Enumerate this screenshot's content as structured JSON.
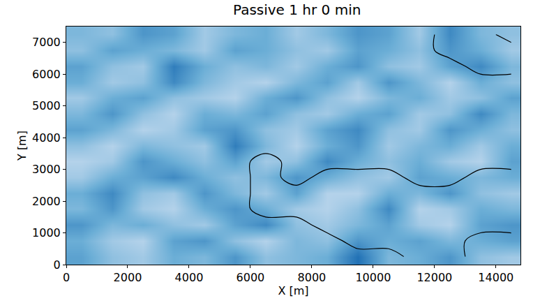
{
  "chart_data": {
    "type": "heatmap",
    "title": "Passive 1 hr 0 min",
    "x_label": "X [m]",
    "y_label": "Y [m]",
    "xlim": [
      0,
      14800
    ],
    "ylim": [
      0,
      7500
    ],
    "xticks": [
      0,
      2000,
      4000,
      6000,
      8000,
      10000,
      12000,
      14000
    ],
    "yticks": [
      0,
      1000,
      2000,
      3000,
      4000,
      5000,
      6000,
      7000
    ],
    "zlim": [
      0,
      1
    ],
    "x": [
      500,
      1500,
      2500,
      3500,
      4500,
      5500,
      6500,
      7500,
      8500,
      9500,
      10500,
      11500,
      12500,
      13500,
      14500
    ],
    "y": [
      250,
      750,
      1250,
      1750,
      2250,
      2750,
      3250,
      3750,
      4250,
      4750,
      5250,
      5750,
      6250,
      6750,
      7250
    ],
    "cells": [
      [
        0.55,
        0.4,
        0.35,
        0.5,
        0.45,
        0.6,
        0.4,
        0.45,
        0.5,
        0.75,
        0.45,
        0.5,
        0.6,
        0.4,
        0.35
      ],
      [
        0.5,
        0.35,
        0.3,
        0.55,
        0.6,
        0.4,
        0.3,
        0.45,
        0.4,
        0.6,
        0.5,
        0.55,
        0.45,
        0.5,
        0.55
      ],
      [
        0.6,
        0.45,
        0.5,
        0.4,
        0.35,
        0.55,
        0.65,
        0.4,
        0.35,
        0.45,
        0.55,
        0.35,
        0.3,
        0.55,
        0.6
      ],
      [
        0.45,
        0.6,
        0.35,
        0.3,
        0.5,
        0.6,
        0.5,
        0.35,
        0.3,
        0.4,
        0.65,
        0.3,
        0.35,
        0.5,
        0.45
      ],
      [
        0.5,
        0.65,
        0.4,
        0.35,
        0.6,
        0.45,
        0.35,
        0.55,
        0.3,
        0.3,
        0.5,
        0.45,
        0.6,
        0.4,
        0.35
      ],
      [
        0.35,
        0.5,
        0.55,
        0.65,
        0.5,
        0.4,
        0.45,
        0.6,
        0.5,
        0.4,
        0.35,
        0.55,
        0.5,
        0.45,
        0.5
      ],
      [
        0.3,
        0.35,
        0.6,
        0.5,
        0.4,
        0.55,
        0.35,
        0.4,
        0.65,
        0.5,
        0.4,
        0.5,
        0.35,
        0.3,
        0.55
      ],
      [
        0.4,
        0.3,
        0.45,
        0.4,
        0.35,
        0.7,
        0.45,
        0.3,
        0.5,
        0.6,
        0.35,
        0.45,
        0.5,
        0.35,
        0.5
      ],
      [
        0.55,
        0.45,
        0.3,
        0.35,
        0.55,
        0.6,
        0.4,
        0.35,
        0.55,
        0.65,
        0.4,
        0.35,
        0.6,
        0.5,
        0.4
      ],
      [
        0.45,
        0.6,
        0.4,
        0.3,
        0.5,
        0.45,
        0.55,
        0.4,
        0.35,
        0.5,
        0.55,
        0.35,
        0.4,
        0.65,
        0.45
      ],
      [
        0.35,
        0.5,
        0.55,
        0.4,
        0.35,
        0.3,
        0.5,
        0.6,
        0.4,
        0.3,
        0.45,
        0.5,
        0.35,
        0.4,
        0.55
      ],
      [
        0.5,
        0.35,
        0.4,
        0.65,
        0.45,
        0.35,
        0.3,
        0.45,
        0.55,
        0.35,
        0.6,
        0.45,
        0.3,
        0.5,
        0.4
      ],
      [
        0.55,
        0.4,
        0.35,
        0.7,
        0.5,
        0.4,
        0.45,
        0.35,
        0.5,
        0.6,
        0.4,
        0.35,
        0.55,
        0.65,
        0.45
      ],
      [
        0.4,
        0.55,
        0.5,
        0.45,
        0.35,
        0.55,
        0.5,
        0.4,
        0.35,
        0.55,
        0.5,
        0.4,
        0.6,
        0.5,
        0.35
      ],
      [
        0.45,
        0.4,
        0.6,
        0.55,
        0.35,
        0.45,
        0.5,
        0.35,
        0.45,
        0.6,
        0.55,
        0.35,
        0.65,
        0.45,
        0.4
      ]
    ],
    "contour_cells": [
      [
        0,
        0,
        0,
        0,
        0,
        0,
        0,
        0,
        0,
        0,
        0,
        1,
        1,
        0,
        0
      ],
      [
        0,
        0,
        0,
        0,
        0,
        0,
        0,
        0,
        0,
        1,
        1,
        1,
        1,
        0,
        0
      ],
      [
        0,
        0,
        0,
        0,
        0,
        0,
        0,
        0,
        1,
        1,
        1,
        1,
        1,
        1,
        1
      ],
      [
        0,
        0,
        0,
        0,
        0,
        0,
        1,
        1,
        1,
        1,
        1,
        1,
        1,
        1,
        1
      ],
      [
        0,
        0,
        0,
        0,
        0,
        0,
        1,
        1,
        1,
        1,
        1,
        1,
        1,
        1,
        1
      ],
      [
        0,
        0,
        0,
        0,
        0,
        0,
        1,
        0,
        1,
        1,
        1,
        0,
        0,
        1,
        1
      ],
      [
        0,
        0,
        0,
        0,
        0,
        0,
        1,
        0,
        0,
        0,
        0,
        0,
        0,
        0,
        0
      ],
      [
        0,
        0,
        0,
        0,
        0,
        0,
        0,
        0,
        0,
        0,
        0,
        0,
        0,
        0,
        0
      ],
      [
        0,
        0,
        0,
        0,
        0,
        0,
        0,
        0,
        0,
        0,
        0,
        0,
        0,
        0,
        0
      ],
      [
        0,
        0,
        0,
        0,
        0,
        0,
        0,
        0,
        0,
        0,
        0,
        0,
        0,
        0,
        0
      ],
      [
        0,
        0,
        0,
        0,
        0,
        0,
        0,
        0,
        0,
        0,
        0,
        0,
        0,
        0,
        0
      ],
      [
        0,
        0,
        0,
        0,
        0,
        0,
        0,
        0,
        0,
        0,
        0,
        0,
        0,
        0,
        0
      ],
      [
        0,
        0,
        0,
        0,
        0,
        0,
        0,
        0,
        0,
        0,
        0,
        0,
        0,
        1,
        1
      ],
      [
        0,
        0,
        0,
        0,
        0,
        0,
        0,
        0,
        0,
        0,
        0,
        0,
        1,
        1,
        1
      ],
      [
        0,
        0,
        0,
        0,
        0,
        0,
        0,
        0,
        0,
        0,
        0,
        0,
        1,
        1,
        0
      ]
    ],
    "grid": false
  }
}
